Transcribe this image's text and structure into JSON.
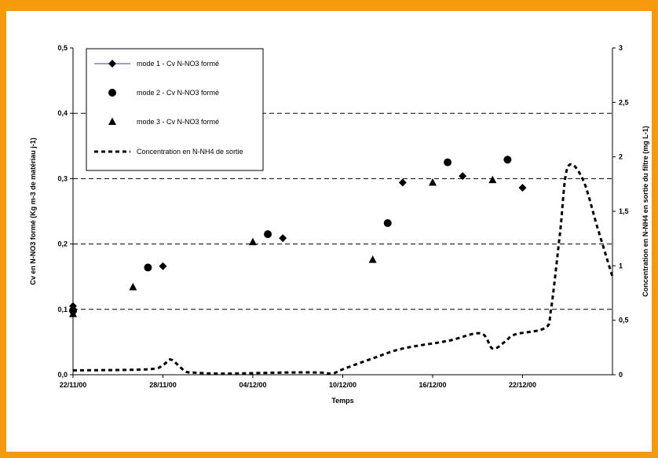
{
  "chart_data": {
    "type": "scatter",
    "xlabel": "Temps",
    "ylabel": "Cv en N-NO3 formé (Kg m-3 de matériau j-1)",
    "y2label": "Concentration en N-NH4 en sortie du filtre (mg L-1)",
    "x_ticks": [
      "22/11/00",
      "28/11/00",
      "04/12/00",
      "10/12/00",
      "16/12/00",
      "22/12/00"
    ],
    "x_range_days": [
      0,
      36
    ],
    "y_ticks": [
      "0,0",
      "0,1",
      "0,2",
      "0,3",
      "0,4",
      "0,5"
    ],
    "ylim": [
      0,
      0.5
    ],
    "y2_ticks": [
      "0",
      "0,5",
      "1",
      "1,5",
      "2",
      "2,5",
      "3"
    ],
    "y2lim": [
      0,
      3
    ],
    "grid": "dashed horizontal",
    "legend_position": "top-left",
    "series": [
      {
        "name": "mode 1 - Cv N-NO3 formé",
        "marker": "diamond",
        "axis": "left",
        "x": [
          "22/11/00",
          "28/11/00",
          "06/12/00",
          "14/12/00",
          "18/12/00",
          "22/12/00"
        ],
        "values": [
          0.105,
          0.166,
          0.209,
          0.294,
          0.304,
          0.286
        ]
      },
      {
        "name": "mode 2 - Cv N-NO3 formé",
        "marker": "circle",
        "axis": "left",
        "x": [
          "22/11/00",
          "27/11/00",
          "05/12/00",
          "13/12/00",
          "17/12/00",
          "21/12/00"
        ],
        "values": [
          0.098,
          0.164,
          0.215,
          0.232,
          0.325,
          0.329
        ]
      },
      {
        "name": "mode 3 - Cv N-NO3 formé",
        "marker": "triangle",
        "axis": "left",
        "x": [
          "22/11/00",
          "26/11/00",
          "04/12/00",
          "12/12/00",
          "16/12/00",
          "20/12/00"
        ],
        "values": [
          0.093,
          0.134,
          0.203,
          0.176,
          0.294,
          0.298
        ]
      },
      {
        "name": "Concentration en N-NH4 de sortie",
        "line": "dashed",
        "axis": "right",
        "x_days": [
          0,
          5,
          6,
          6.5,
          7,
          7.5,
          8,
          10,
          14,
          16.5,
          17.3,
          18,
          20,
          22,
          25,
          27.2,
          28.0,
          28.8,
          29.5,
          31.5,
          31.9,
          32.5,
          33.0,
          34.0,
          35,
          36
        ],
        "values": [
          0.04,
          0.05,
          0.09,
          0.14,
          0.09,
          0.03,
          0.02,
          0.01,
          0.02,
          0.02,
          0.01,
          0.05,
          0.15,
          0.24,
          0.31,
          0.38,
          0.24,
          0.3,
          0.37,
          0.43,
          0.6,
          1.3,
          1.9,
          1.8,
          1.35,
          0.9
        ]
      }
    ]
  }
}
